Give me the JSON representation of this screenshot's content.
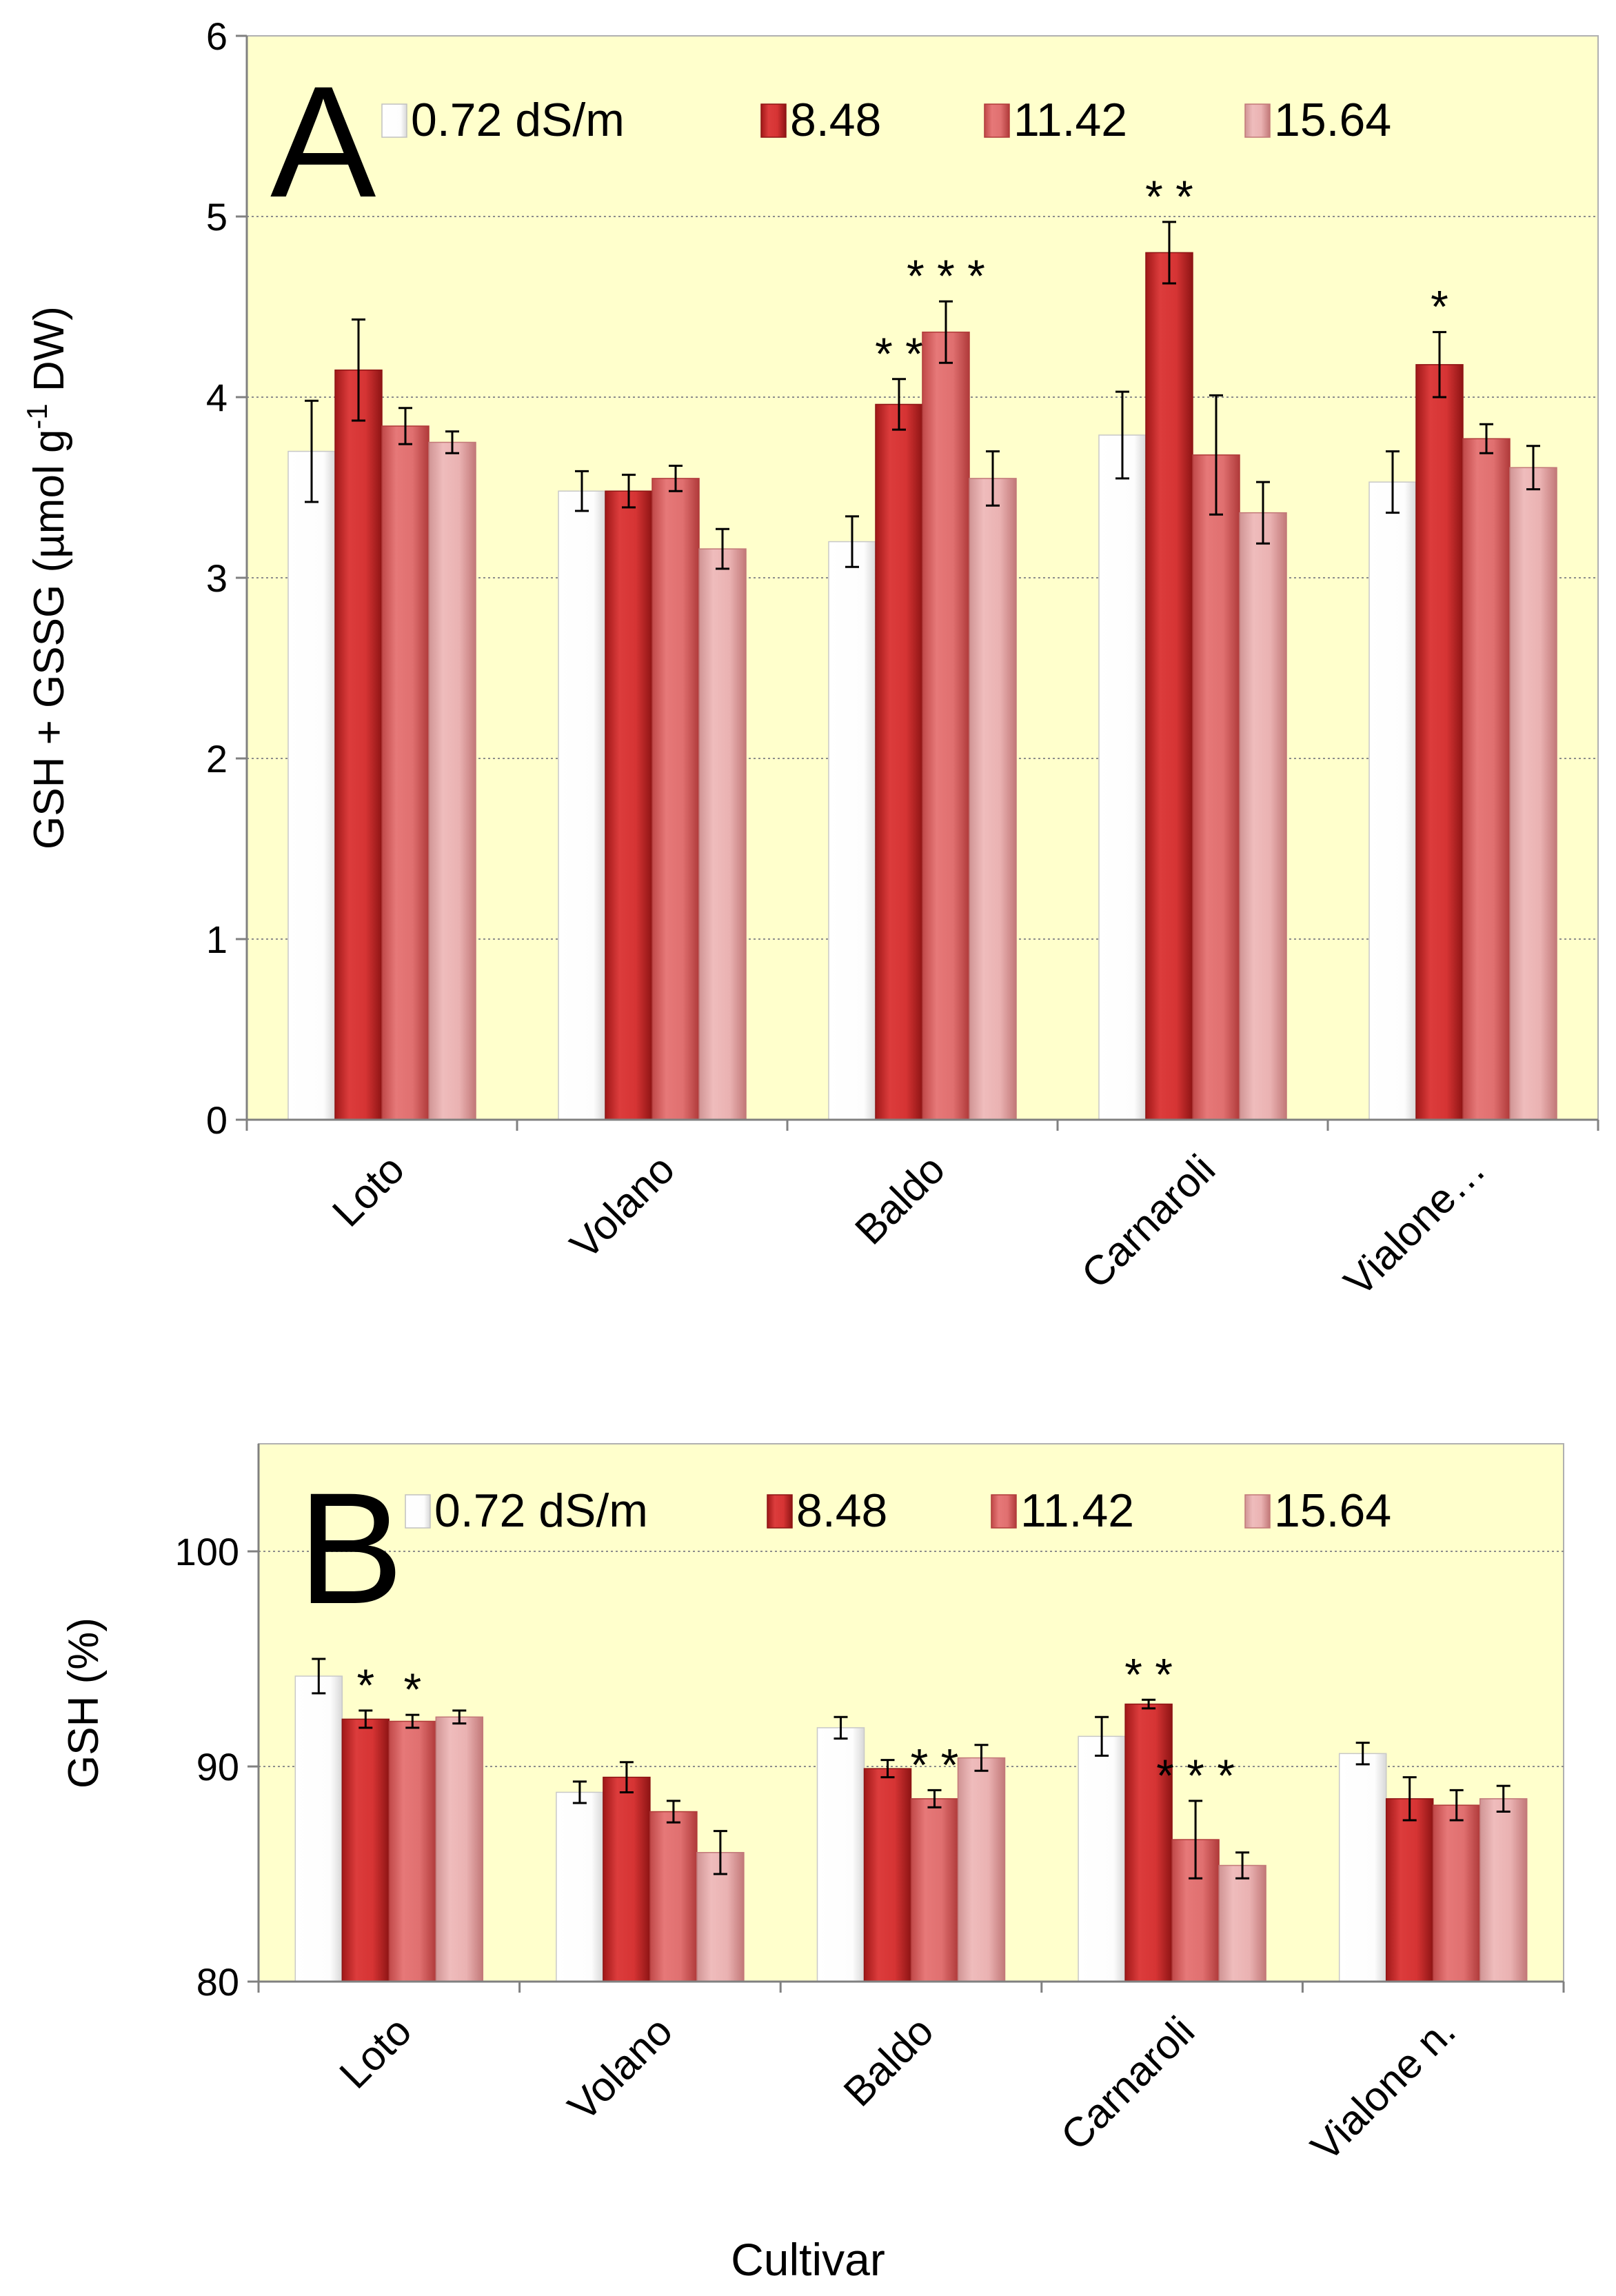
{
  "figure": {
    "xlabel": "Cultivar"
  },
  "colors": {
    "plot_bg": "#ffffcc",
    "grid": "#999999",
    "series": [
      "#ffffff",
      "#d63a3a",
      "#e06c6c",
      "#e8a8a8"
    ],
    "series_dark": [
      "#d0d0d0",
      "#8e1414",
      "#b03a3a",
      "#c27878"
    ]
  },
  "chart_data": [
    {
      "type": "bar",
      "panel": "A",
      "title": "",
      "xlabel": "",
      "ylabel": "GSH + GSSG (µmol g⁻¹ DW)",
      "ylabel_parts": [
        "GSH + GSSG (µmol g",
        "-1",
        " DW)"
      ],
      "ylim": [
        0,
        6
      ],
      "yticks": [
        "0",
        "1",
        "2",
        "3",
        "4",
        "5",
        "6"
      ],
      "grid": true,
      "categories": [
        "Loto",
        "Volano",
        "Baldo",
        "Carnaroli",
        "Vialone…"
      ],
      "series": [
        {
          "name": "0.72 dS/m",
          "values": [
            3.7,
            3.48,
            3.2,
            3.79,
            3.53
          ],
          "errors": [
            0.28,
            0.11,
            0.14,
            0.24,
            0.17
          ],
          "marks": [
            "",
            "",
            "",
            "",
            ""
          ]
        },
        {
          "name": "8.48",
          "values": [
            4.15,
            3.48,
            3.96,
            4.8,
            4.18
          ],
          "errors": [
            0.28,
            0.09,
            0.14,
            0.17,
            0.18
          ],
          "marks": [
            "",
            "",
            "* *",
            "* *",
            "*"
          ]
        },
        {
          "name": "11.42",
          "values": [
            3.84,
            3.55,
            4.36,
            3.68,
            3.77
          ],
          "errors": [
            0.1,
            0.07,
            0.17,
            0.33,
            0.08
          ],
          "marks": [
            "",
            "",
            "* * *",
            "",
            ""
          ]
        },
        {
          "name": "15.64",
          "values": [
            3.75,
            3.16,
            3.55,
            3.36,
            3.61
          ],
          "errors": [
            0.06,
            0.11,
            0.15,
            0.17,
            0.12
          ],
          "marks": [
            "",
            "",
            "",
            "",
            ""
          ]
        }
      ]
    },
    {
      "type": "bar",
      "panel": "B",
      "title": "",
      "xlabel": "Cultivar",
      "ylabel": "GSH (%)",
      "ylim": [
        80,
        105
      ],
      "yticks": [
        "80",
        "90",
        "100"
      ],
      "grid": true,
      "categories": [
        "Loto",
        "Volano",
        "Baldo",
        "Carnaroli",
        "Vialone n."
      ],
      "series": [
        {
          "name": "0.72 dS/m",
          "values": [
            94.2,
            88.8,
            91.8,
            91.4,
            90.6
          ],
          "errors": [
            0.8,
            0.5,
            0.5,
            0.9,
            0.5
          ],
          "marks": [
            "",
            "",
            "",
            "",
            ""
          ]
        },
        {
          "name": "8.48",
          "values": [
            92.2,
            89.5,
            89.9,
            92.9,
            88.5
          ],
          "errors": [
            0.4,
            0.7,
            0.4,
            0.2,
            1.0
          ],
          "marks": [
            "*",
            "",
            "",
            "* *",
            ""
          ]
        },
        {
          "name": "11.42",
          "values": [
            92.1,
            87.9,
            88.5,
            86.6,
            88.2
          ],
          "errors": [
            0.3,
            0.5,
            0.4,
            1.8,
            0.7
          ],
          "marks": [
            "*",
            "",
            "* *",
            "* * *",
            ""
          ]
        },
        {
          "name": "15.64",
          "values": [
            92.3,
            86.0,
            90.4,
            85.4,
            88.5
          ],
          "errors": [
            0.3,
            1.0,
            0.6,
            0.6,
            0.6
          ],
          "marks": [
            "",
            "",
            "",
            "",
            ""
          ]
        }
      ]
    }
  ]
}
